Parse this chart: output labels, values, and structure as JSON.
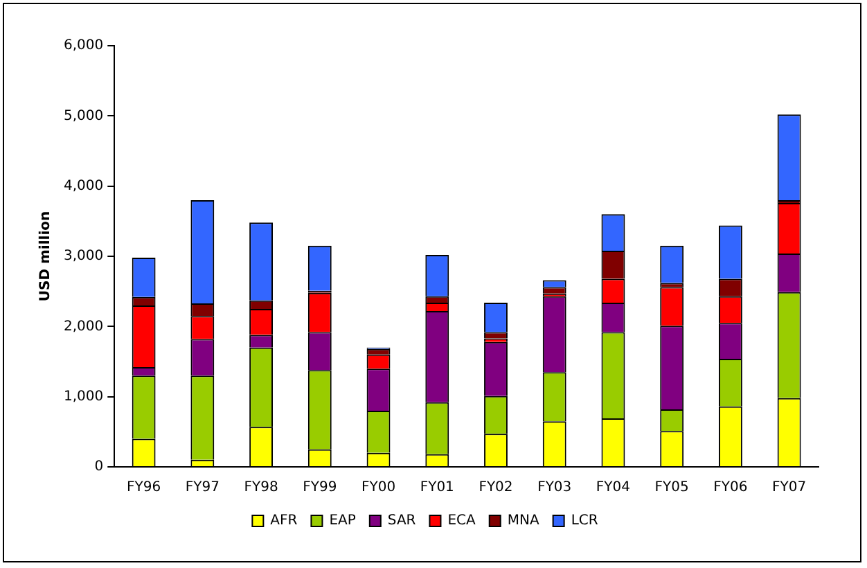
{
  "chart_data": {
    "type": "bar",
    "stacked": true,
    "ylabel": "USD million",
    "categories": [
      "FY96",
      "FY97",
      "FY98",
      "FY99",
      "FY00",
      "FY01",
      "FY02",
      "FY03",
      "FY04",
      "FY05",
      "FY06",
      "FY07"
    ],
    "series": [
      {
        "name": "AFR",
        "color": "#ffff00",
        "values": [
          400,
          100,
          570,
          250,
          200,
          180,
          470,
          650,
          690,
          510,
          860,
          980
        ]
      },
      {
        "name": "EAP",
        "color": "#99cc00",
        "values": [
          900,
          1200,
          1130,
          1130,
          600,
          740,
          540,
          700,
          1230,
          310,
          680,
          1510
        ]
      },
      {
        "name": "SAR",
        "color": "#800080",
        "values": [
          120,
          520,
          180,
          540,
          600,
          1300,
          770,
          1080,
          420,
          1190,
          510,
          550
        ]
      },
      {
        "name": "ECA",
        "color": "#ff0000",
        "values": [
          880,
          330,
          370,
          560,
          200,
          120,
          50,
          40,
          340,
          550,
          380,
          720
        ]
      },
      {
        "name": "MNA",
        "color": "#800000",
        "values": [
          120,
          180,
          120,
          30,
          80,
          90,
          90,
          90,
          400,
          60,
          250,
          40
        ]
      },
      {
        "name": "LCR",
        "color": "#3366ff",
        "values": [
          560,
          1470,
          1110,
          640,
          20,
          590,
          420,
          100,
          520,
          530,
          760,
          1220
        ]
      }
    ],
    "ylim": [
      0,
      6000
    ],
    "yticks": [
      {
        "value": 0,
        "label": "0"
      },
      {
        "value": 1000,
        "label": "1,000"
      },
      {
        "value": 2000,
        "label": "2,000"
      },
      {
        "value": 3000,
        "label": "3,000"
      },
      {
        "value": 4000,
        "label": "4,000"
      },
      {
        "value": 5000,
        "label": "5,000"
      },
      {
        "value": 6000,
        "label": "6,000"
      }
    ],
    "grid": false,
    "legend": "bottom"
  }
}
